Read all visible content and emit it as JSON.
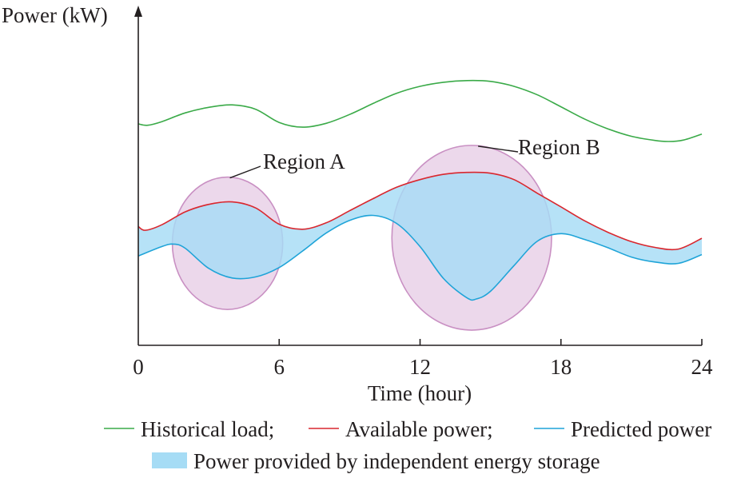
{
  "chart_data": {
    "type": "line",
    "ylabel": "Power (kW)",
    "xlabel": "Time (hour)",
    "xlim": [
      0,
      24
    ],
    "x_ticks": [
      "0",
      "6",
      "12",
      "18",
      "24"
    ],
    "y_ticks_shown": false,
    "grid": false,
    "series": [
      {
        "name": "Historical load",
        "color": "#3aaa48",
        "x": [
          0,
          0.4,
          1,
          2,
          3,
          4,
          5,
          6,
          7,
          8,
          9,
          10,
          11,
          12,
          13,
          14,
          15,
          16,
          17,
          18,
          19,
          20,
          21,
          22,
          22.6,
          23.2,
          24
        ],
        "y": [
          8.03,
          7.98,
          8.11,
          8.43,
          8.63,
          8.72,
          8.56,
          8.08,
          7.91,
          8.05,
          8.37,
          8.77,
          9.14,
          9.39,
          9.54,
          9.6,
          9.57,
          9.39,
          9.08,
          8.65,
          8.21,
          7.85,
          7.58,
          7.43,
          7.39,
          7.44,
          7.66
        ]
      },
      {
        "name": "Available power",
        "color": "#d9272e",
        "x": [
          0,
          0.3,
          1,
          2,
          3,
          4,
          5,
          6,
          7,
          8,
          9,
          10,
          11,
          12,
          13,
          14,
          15,
          16,
          17,
          18,
          19,
          20,
          21,
          22,
          23,
          24
        ],
        "y": [
          4.31,
          4.17,
          4.37,
          4.84,
          5.11,
          5.2,
          4.98,
          4.39,
          4.21,
          4.44,
          4.88,
          5.32,
          5.73,
          6.01,
          6.2,
          6.27,
          6.24,
          6.01,
          5.51,
          5.02,
          4.52,
          4.1,
          3.76,
          3.55,
          3.49,
          3.88
        ]
      },
      {
        "name": "Predicted power",
        "color": "#1fa4d8",
        "x": [
          0,
          1,
          1.5,
          2,
          3,
          4,
          5,
          6,
          7,
          8,
          9,
          10,
          11,
          12,
          13,
          14,
          14.4,
          15,
          16,
          17,
          18,
          19,
          20,
          21,
          22,
          23,
          24
        ],
        "y": [
          3.24,
          3.58,
          3.67,
          3.52,
          2.79,
          2.44,
          2.48,
          2.82,
          3.42,
          4.07,
          4.53,
          4.71,
          4.42,
          3.58,
          2.42,
          1.72,
          1.68,
          1.96,
          2.89,
          3.78,
          4.05,
          3.84,
          3.54,
          3.2,
          3.02,
          2.97,
          3.29
        ]
      }
    ],
    "fill_between": {
      "upper": "Available power",
      "lower": "Predicted power",
      "color": "#a6dcf5",
      "label": "Power provided by independent energy storage"
    },
    "annotations": [
      {
        "text": "Region A",
        "center_x": 3.8,
        "center_y": 3.7,
        "rx_hours": 2.35,
        "ry_kw": 2.4,
        "fill": "#ecd8eb",
        "stroke": "#c990c3"
      },
      {
        "text": "Region B",
        "center_x": 14.2,
        "center_y": 3.9,
        "rx_hours": 3.4,
        "ry_kw": 3.35,
        "fill": "#ecd8eb",
        "stroke": "#c990c3"
      }
    ],
    "legend": {
      "placement": "bottom",
      "line_entries": [
        "Historical load;",
        "Available power;",
        "Predicted power"
      ],
      "fill_entry": "Power provided by independent energy storage"
    }
  }
}
